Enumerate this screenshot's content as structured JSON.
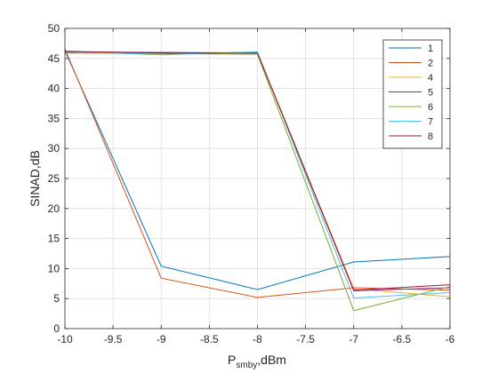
{
  "chart_data": {
    "type": "line",
    "xlabel_main": "P",
    "xlabel_sub": "smby",
    "xlabel_rest": ",dBm",
    "ylabel": "SINAD,dB",
    "xlim": [
      -10,
      -6
    ],
    "ylim": [
      0,
      50
    ],
    "xticks": [
      -10,
      -9.5,
      -9,
      -8.5,
      -8,
      -7.5,
      -7,
      -6.5,
      -6
    ],
    "yticks": [
      0,
      5,
      10,
      15,
      20,
      25,
      30,
      35,
      40,
      45,
      50
    ],
    "xtick_labels": [
      "-10",
      "-9.5",
      "-9",
      "-8.5",
      "-8",
      "-7.5",
      "-7",
      "-6.5",
      "-6"
    ],
    "ytick_labels": [
      "0",
      "5",
      "10",
      "15",
      "20",
      "25",
      "30",
      "35",
      "40",
      "45",
      "50"
    ],
    "grid": true,
    "legend_position": "top-right",
    "x": [
      -10,
      -9,
      -8,
      -7,
      -6
    ],
    "series": [
      {
        "name": "1",
        "color": "#0072BD",
        "values": [
          46.3,
          10.4,
          6.5,
          11.1,
          12.0
        ]
      },
      {
        "name": "2",
        "color": "#D95319",
        "values": [
          46.6,
          8.4,
          5.2,
          6.8,
          6.4
        ]
      },
      {
        "name": "4",
        "color": "#EDB120",
        "values": [
          46.0,
          45.9,
          46.0,
          6.6,
          5.3
        ]
      },
      {
        "name": "5",
        "color": "#7E2F8E",
        "values": [
          46.1,
          46.0,
          45.9,
          6.3,
          6.8
        ]
      },
      {
        "name": "6",
        "color": "#77AC30",
        "values": [
          45.9,
          45.8,
          45.7,
          3.0,
          7.0
        ]
      },
      {
        "name": "7",
        "color": "#4DBEEE",
        "values": [
          46.2,
          45.6,
          46.1,
          5.1,
          6.0
        ]
      },
      {
        "name": "8",
        "color": "#A2142F",
        "values": [
          46.2,
          45.9,
          45.9,
          6.4,
          7.3
        ]
      }
    ]
  }
}
